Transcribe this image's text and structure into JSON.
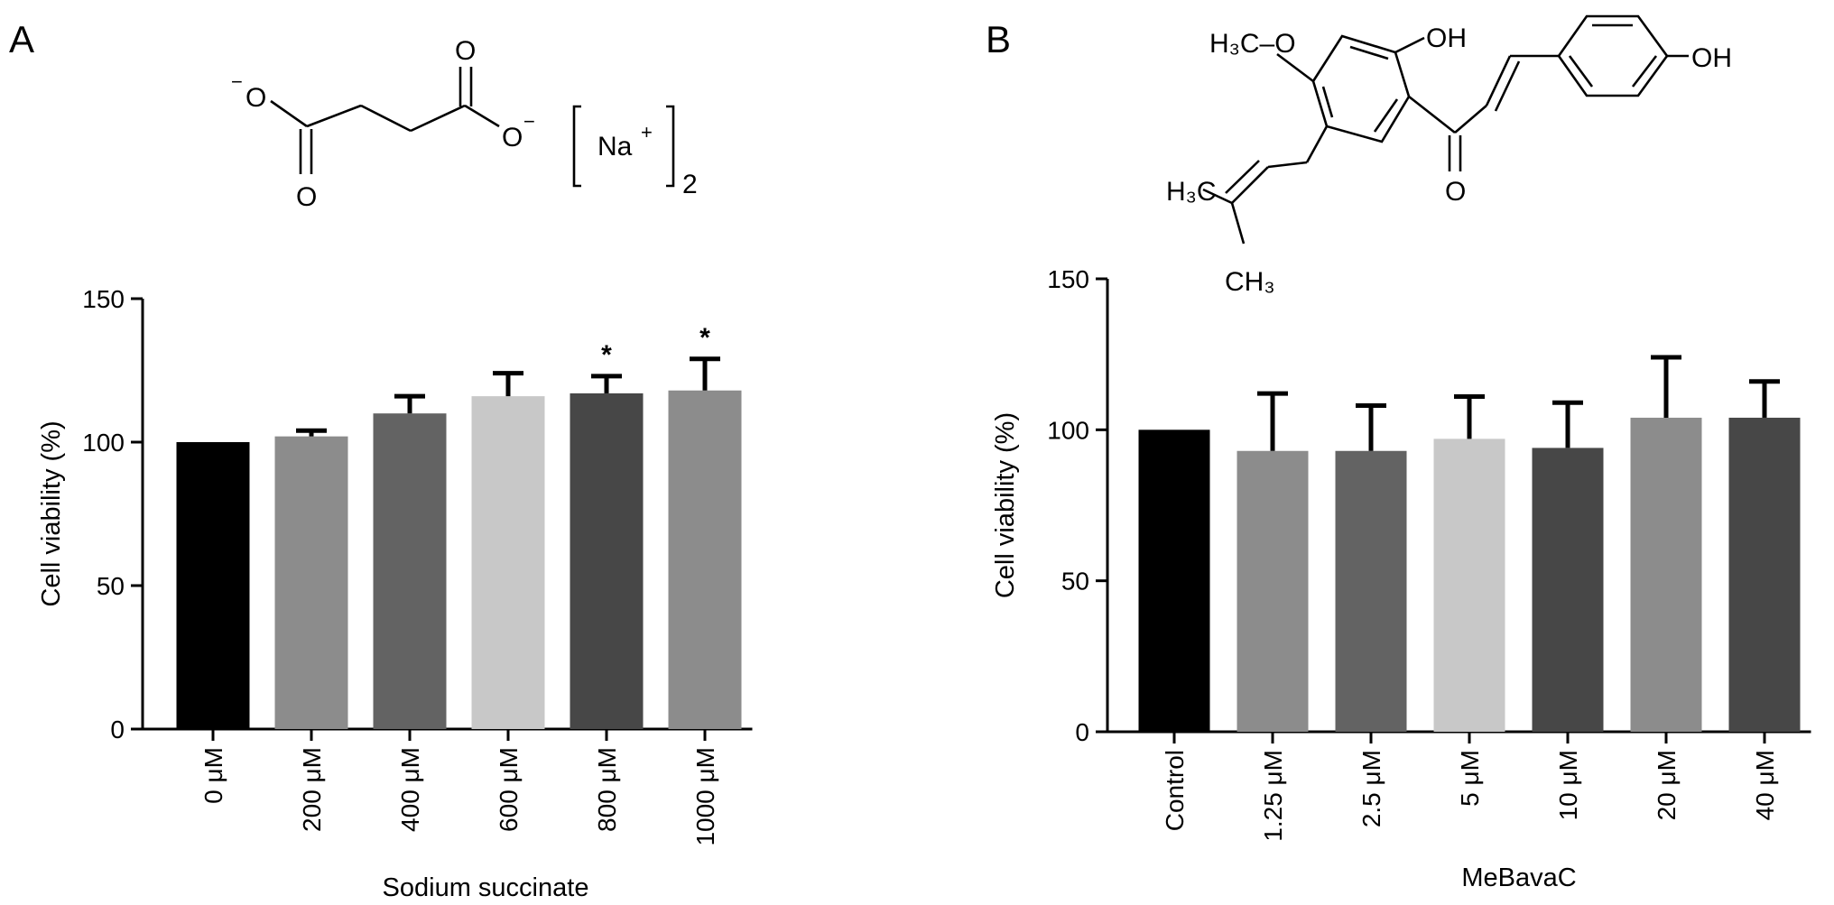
{
  "panels": [
    {
      "letter": "A",
      "structure": {
        "o_minus_left": "O",
        "o_minus_left_charge": "−",
        "o_bottom": "O",
        "o_top": "O",
        "o_minus_right": "O",
        "o_minus_right_charge": "−",
        "ion": "Na",
        "ion_charge": "+",
        "subscript": "2"
      }
    },
    {
      "letter": "B",
      "structure": {
        "methoxy": "H₃C–O",
        "oh_left": "OH",
        "oh_right": "OH",
        "carbonyl_o": "O",
        "h3c": "H₃C",
        "ch3": "CH₃"
      }
    }
  ],
  "chart_data": [
    {
      "type": "bar",
      "title": "",
      "xlabel": "Sodium succinate",
      "ylabel": "Cell viability (%)",
      "ylim": [
        0,
        150
      ],
      "yticks": [
        0,
        50,
        100,
        150
      ],
      "grid": false,
      "categories": [
        "0 μM",
        "200 μM",
        "400 μM",
        "600 μM",
        "800 μM",
        "1000 μM"
      ],
      "values": [
        100,
        102,
        110,
        116,
        117,
        118
      ],
      "errors": [
        0,
        2,
        6,
        8,
        6,
        11
      ],
      "significance": [
        "",
        "",
        "",
        "",
        "*",
        "*"
      ],
      "bar_colors": [
        "#000000",
        "#8c8c8c",
        "#636363",
        "#c8c8c8",
        "#474747",
        "#8c8c8c"
      ]
    },
    {
      "type": "bar",
      "title": "",
      "xlabel": "MeBavaC",
      "ylabel": "Cell viability (%)",
      "ylim": [
        0,
        150
      ],
      "yticks": [
        0,
        50,
        100,
        150
      ],
      "grid": false,
      "categories": [
        "Control",
        "1.25 μM",
        "2.5 μM",
        "5 μM",
        "10 μM",
        "20 μM",
        "40 μM"
      ],
      "values": [
        100,
        93,
        93,
        97,
        94,
        104,
        104
      ],
      "errors": [
        0,
        19,
        15,
        14,
        15,
        20,
        12
      ],
      "significance": [
        "",
        "",
        "",
        "",
        "",
        "",
        ""
      ],
      "bar_colors": [
        "#000000",
        "#8c8c8c",
        "#636363",
        "#c8c8c8",
        "#474747",
        "#8c8c8c",
        "#474747"
      ]
    }
  ]
}
